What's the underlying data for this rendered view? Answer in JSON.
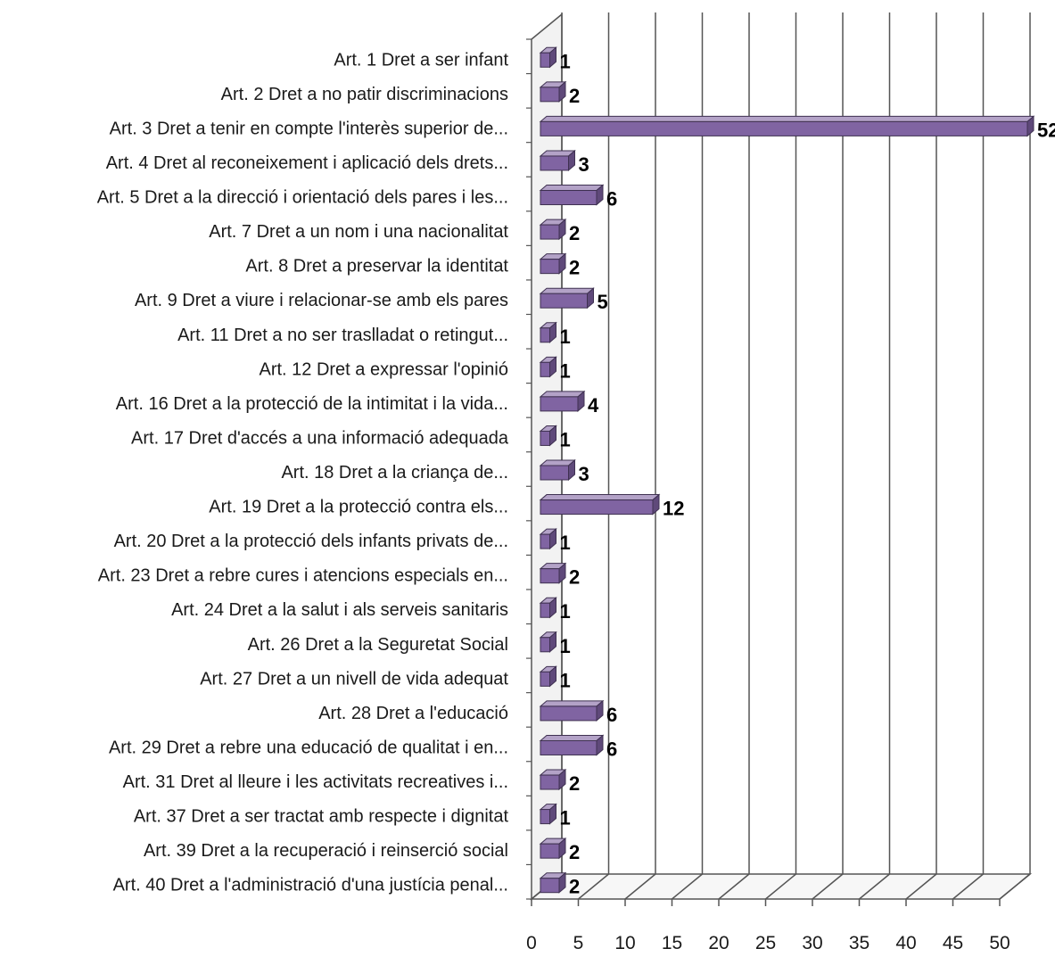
{
  "chart_data": {
    "type": "bar",
    "orientation": "horizontal",
    "style": "3d",
    "categories": [
      "Art. 1 Dret a ser infant",
      "Art. 2 Dret a no patir discriminacions",
      "Art. 3 Dret a tenir en compte l'interès superior de...",
      "Art. 4 Dret al reconeixement i aplicació dels drets...",
      "Art. 5 Dret a la direcció i orientació dels pares i les...",
      "Art. 7 Dret a un nom i una nacionalitat",
      "Art. 8 Dret a preservar la identitat",
      "Art. 9 Dret a viure i relacionar-se amb els pares",
      "Art. 11 Dret a no ser traslladat o retingut...",
      "Art. 12 Dret a expressar l'opinió",
      "Art. 16 Dret a la protecció de la intimitat i la vida...",
      "Art. 17 Dret d'accés a una informació adequada",
      "Art. 18 Dret a la criança de...",
      "Art. 19 Dret a la protecció contra els...",
      "Art. 20 Dret a la protecció dels infants privats de...",
      "Art. 23 Dret a rebre cures i atencions especials en...",
      "Art. 24 Dret a la salut i als serveis sanitaris",
      "Art. 26 Dret a la Seguretat Social",
      "Art. 27 Dret a un nivell de vida adequat",
      "Art. 28 Dret a l'educació",
      "Art. 29 Dret a rebre una educació de qualitat i en...",
      "Art. 31 Dret al lleure i les activitats recreatives i...",
      "Art. 37 Dret a ser tractat amb respecte i dignitat",
      "Art. 39 Dret a la recuperació i reinserció social",
      "Art. 40 Dret a l'administració d'una justícia penal..."
    ],
    "values": [
      1,
      2,
      52,
      3,
      6,
      2,
      2,
      5,
      1,
      1,
      4,
      1,
      3,
      12,
      1,
      2,
      1,
      1,
      1,
      6,
      6,
      2,
      1,
      2,
      2
    ],
    "xlim": [
      0,
      50
    ],
    "xticks": [
      "0",
      "5",
      "10",
      "15",
      "20",
      "25",
      "30",
      "35",
      "40",
      "45",
      "50"
    ],
    "title": "",
    "xlabel": "",
    "ylabel": "",
    "grid": true,
    "bar_color": "#8064a2",
    "bar_top_color": "#b3a2c7",
    "bar_end_color": "#5f497a",
    "grid_color": "#555555"
  }
}
